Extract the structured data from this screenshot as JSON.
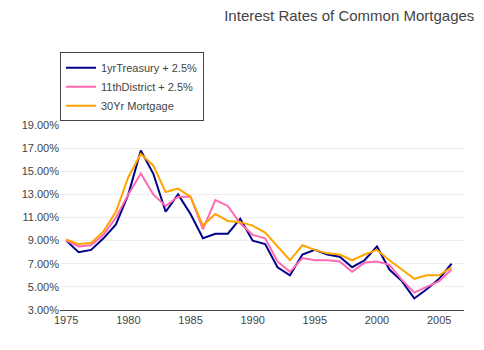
{
  "chart_data": {
    "type": "line",
    "title": "Interest Rates of Common Mortgages",
    "xlim": [
      1974.5,
      2007.0
    ],
    "xticks": [
      1975,
      1980,
      1985,
      1990,
      1995,
      2000,
      2005
    ],
    "ylim": [
      0.03,
      0.19
    ],
    "yticks": [
      {
        "value": 0.03,
        "label": "3.00%"
      },
      {
        "value": 0.05,
        "label": "5.00%"
      },
      {
        "value": 0.07,
        "label": "7.00%"
      },
      {
        "value": 0.09,
        "label": "9.00%"
      },
      {
        "value": 0.11,
        "label": "11.00%"
      },
      {
        "value": 0.13,
        "label": "13.00%"
      },
      {
        "value": 0.15,
        "label": "15.00%"
      },
      {
        "value": 0.17,
        "label": "17.00%"
      },
      {
        "value": 0.19,
        "label": "19.00%"
      }
    ],
    "grid": true,
    "legend": "upper left",
    "x": [
      1975,
      1976,
      1977,
      1978,
      1979,
      1980,
      1981,
      1982,
      1983,
      1984,
      1985,
      1986,
      1987,
      1988,
      1989,
      1990,
      1991,
      1992,
      1993,
      1994,
      1995,
      1996,
      1997,
      1998,
      1999,
      2000,
      2001,
      2002,
      2003,
      2004,
      2005,
      2006
    ],
    "series": [
      {
        "name": "1yrTreasury + 2.5%",
        "color": "#00008b",
        "values": [
          0.09,
          0.08,
          0.082,
          0.092,
          0.104,
          0.13,
          0.168,
          0.148,
          0.115,
          0.13,
          0.113,
          0.092,
          0.096,
          0.096,
          0.109,
          0.09,
          0.087,
          0.067,
          0.06,
          0.078,
          0.082,
          0.078,
          0.076,
          0.067,
          0.073,
          0.085,
          0.065,
          0.055,
          0.04,
          0.048,
          0.057,
          0.07
        ]
      },
      {
        "name": "11thDistrict + 2.5%",
        "color": "#ff69b4",
        "values": [
          0.09,
          0.085,
          0.086,
          0.095,
          0.11,
          0.13,
          0.148,
          0.13,
          0.12,
          0.128,
          0.128,
          0.1,
          0.125,
          0.12,
          0.105,
          0.095,
          0.092,
          0.072,
          0.063,
          0.075,
          0.073,
          0.073,
          0.072,
          0.063,
          0.071,
          0.072,
          0.069,
          0.056,
          0.045,
          0.05,
          0.055,
          0.065
        ]
      },
      {
        "name": "30Yr Mortgage",
        "color": "#ffa500",
        "values": [
          0.091,
          0.087,
          0.088,
          0.098,
          0.115,
          0.145,
          0.165,
          0.155,
          0.132,
          0.135,
          0.128,
          0.103,
          0.113,
          0.107,
          0.106,
          0.103,
          0.097,
          0.085,
          0.073,
          0.086,
          0.082,
          0.079,
          0.078,
          0.073,
          0.078,
          0.082,
          0.073,
          0.065,
          0.057,
          0.06,
          0.06,
          0.067
        ]
      }
    ]
  }
}
